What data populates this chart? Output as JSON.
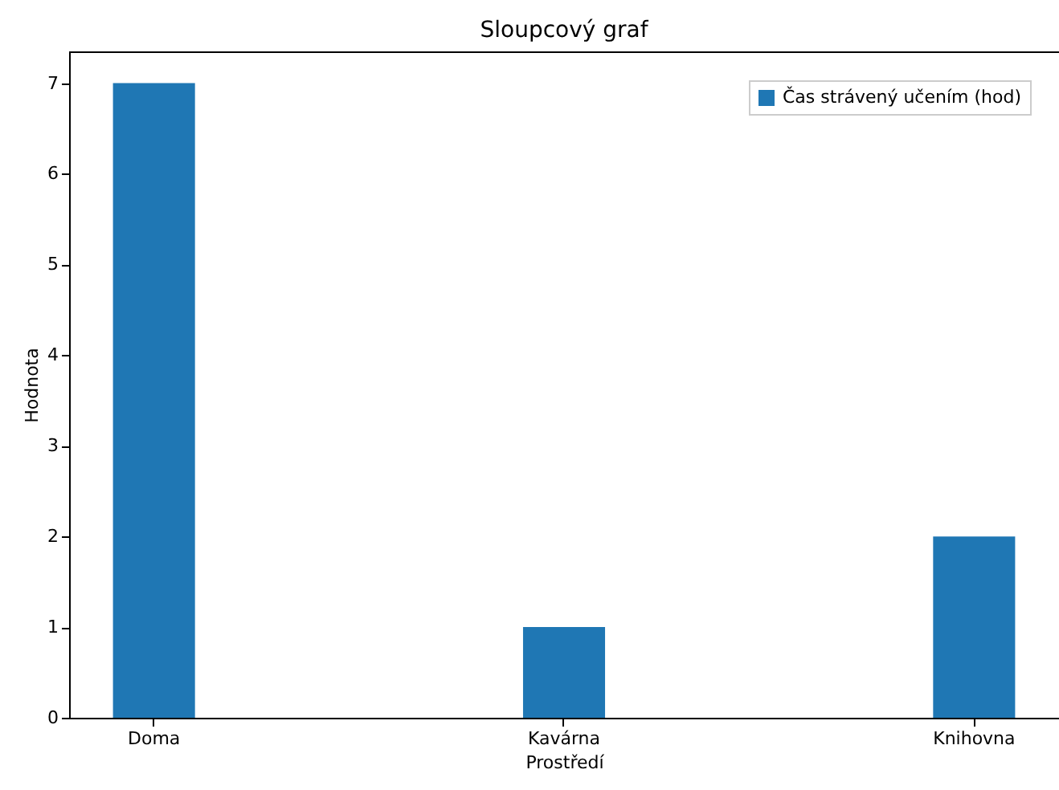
{
  "chart_data": {
    "type": "bar",
    "title": "Sloupcový graf",
    "xlabel": "Prostředí",
    "ylabel": "Hodnota",
    "categories": [
      "Doma",
      "Kavárna",
      "Knihovna"
    ],
    "series": [
      {
        "name": "Čas strávený učením (hod)",
        "color": "#1f77b4",
        "values": [
          7,
          1,
          2
        ]
      }
    ],
    "ylim": [
      0,
      7.35
    ],
    "yticks": [
      0,
      1,
      2,
      3,
      4,
      5,
      6,
      7
    ],
    "grid": false,
    "legend": "top right"
  }
}
